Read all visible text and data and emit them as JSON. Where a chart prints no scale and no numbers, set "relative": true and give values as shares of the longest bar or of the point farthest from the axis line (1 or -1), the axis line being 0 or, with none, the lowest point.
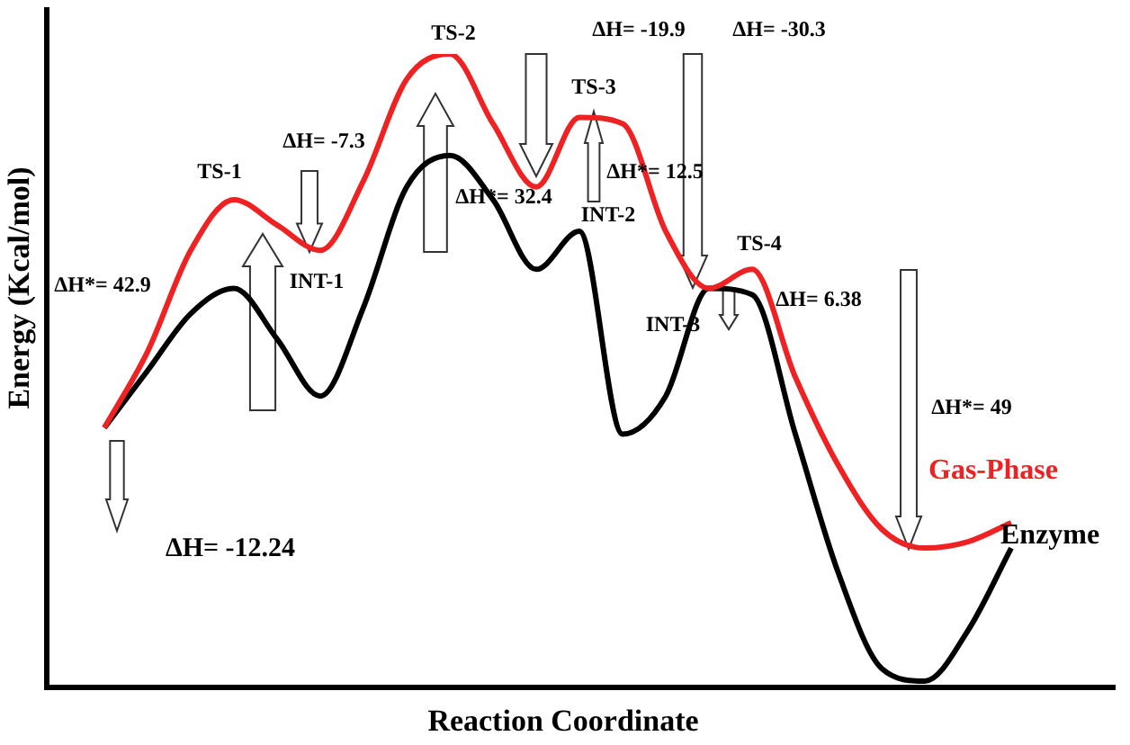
{
  "chart_data": {
    "type": "line",
    "relative": true,
    "xlabel": "Reaction Coordinate",
    "ylabel": "Energy (Kcal/mol)",
    "legend": false,
    "marker": "none",
    "line_style": "solid",
    "categories": [
      null,
      null,
      null,
      null,
      null,
      null,
      null,
      null,
      null,
      null,
      null,
      null,
      null,
      null,
      null,
      null,
      null,
      null,
      null,
      null,
      null,
      null
    ],
    "series": [
      {
        "name": "Gas-Phase",
        "color": "#ee2222",
        "values": [
          0.41,
          0.53,
          0.69,
          0.77,
          0.73,
          0.69,
          0.8,
          0.96,
          1,
          0.89,
          0.79,
          0.9,
          0.89,
          0.72,
          0.63,
          0.66,
          0.49,
          0.35,
          0.25,
          0.22,
          0.23,
          0.26
        ]
      },
      {
        "name": "Enzyme",
        "color": "#000000",
        "values": [
          0.41,
          0.5,
          0.59,
          0.63,
          0.55,
          0.46,
          0.6,
          0.79,
          0.84,
          0.77,
          0.66,
          0.72,
          0.4,
          0.46,
          0.63,
          0.62,
          0.4,
          0.18,
          0.03,
          0.01,
          0.09,
          0.22
        ]
      }
    ],
    "annotations": [
      "TS-1",
      "ΔH*= 42.9",
      "ΔH= -7.3",
      "INT-1",
      "TS-2",
      "ΔH*= 32.4",
      "ΔH= -19.9",
      "TS-3",
      "INT-2",
      "ΔH= -30.3",
      "ΔH*= 12.5",
      "TS-4",
      "INT-3",
      "ΔH= 6.38",
      "ΔH*= 49",
      "ΔH= -12.24"
    ]
  }
}
